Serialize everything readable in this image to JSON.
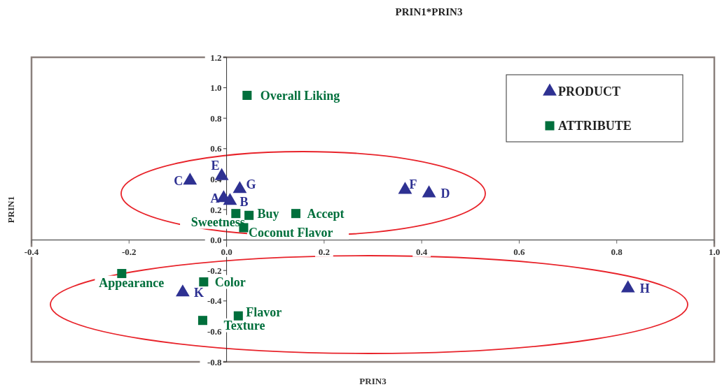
{
  "chart_data": {
    "type": "scatter",
    "title": "PRIN1*PRIN3",
    "xlabel": "PRIN3",
    "ylabel": "PRIN1",
    "xlim": [
      -0.4,
      1.0
    ],
    "xticks": [
      {
        "value": -0.4,
        "label": "-0.4"
      },
      {
        "value": -0.2,
        "label": "-0.2"
      },
      {
        "value": 0,
        "label": "0.0"
      },
      {
        "value": 0.2,
        "label": "0.2"
      },
      {
        "value": 0.4,
        "label": "0.4"
      },
      {
        "value": 0.6,
        "label": "0.6"
      },
      {
        "value": 0.8,
        "label": "0.8"
      },
      {
        "value": 1.0,
        "label": "1.0"
      }
    ],
    "ylim": [
      -0.8,
      1.2
    ],
    "yticks": [
      {
        "value": -0.8,
        "label": "-0.8"
      },
      {
        "value": -0.6,
        "label": "-0.6"
      },
      {
        "value": -0.4,
        "label": "-0.4"
      },
      {
        "value": -0.2,
        "label": "-0.2"
      },
      {
        "value": 0,
        "label": "0.0"
      },
      {
        "value": 0.2,
        "label": "0.2"
      },
      {
        "value": 0.4,
        "label": "0.4"
      },
      {
        "value": 0.6,
        "label": "0.6"
      },
      {
        "value": 0.8,
        "label": "0.8"
      },
      {
        "value": 1.0,
        "label": "1.0"
      },
      {
        "value": 1.2,
        "label": "1.2"
      }
    ],
    "grid": false,
    "legend": "top right",
    "series": [
      {
        "name": "PRODUCT",
        "color": "#2e3192",
        "marker": "triangle",
        "x": [
          -0.075,
          -0.01,
          0.027,
          -0.006,
          0.007,
          0.366,
          0.415,
          0.823,
          -0.09
        ],
        "values": [
          0.39,
          0.42,
          0.335,
          0.275,
          0.257,
          0.33,
          0.307,
          -0.317,
          -0.344
        ]
      },
      {
        "name": "ATTRIBUTE",
        "color": "#006f3c",
        "marker": "square",
        "x": [
          0.042,
          0.019,
          0.046,
          0.142,
          0.035,
          -0.215,
          -0.047,
          0.024,
          -0.049
        ],
        "values": [
          0.95,
          0.174,
          0.162,
          0.174,
          0.081,
          -0.22,
          -0.275,
          -0.498,
          -0.528
        ]
      }
    ],
    "annotations": [
      {
        "text": "C",
        "x": -0.075,
        "y": 0.39
      },
      {
        "text": "E",
        "x": -0.01,
        "y": 0.42
      },
      {
        "text": "G",
        "x": 0.027,
        "y": 0.335
      },
      {
        "text": "A",
        "x": -0.006,
        "y": 0.275
      },
      {
        "text": "B",
        "x": 0.007,
        "y": 0.257
      },
      {
        "text": "F",
        "x": 0.366,
        "y": 0.33
      },
      {
        "text": "D",
        "x": 0.415,
        "y": 0.307
      },
      {
        "text": "H",
        "x": 0.823,
        "y": -0.317
      },
      {
        "text": "K",
        "x": -0.09,
        "y": -0.344
      },
      {
        "text": "Overall Liking",
        "x": 0.042,
        "y": 0.95
      },
      {
        "text": "Sweetness",
        "x": 0.019,
        "y": 0.174
      },
      {
        "text": "Buy",
        "x": 0.046,
        "y": 0.162
      },
      {
        "text": "Accept",
        "x": 0.142,
        "y": 0.174
      },
      {
        "text": "Coconut Flavor",
        "x": 0.035,
        "y": 0.081
      },
      {
        "text": "Appearance",
        "x": -0.215,
        "y": -0.22
      },
      {
        "text": "Color",
        "x": -0.047,
        "y": -0.275
      },
      {
        "text": "Flavor",
        "x": 0.024,
        "y": -0.498
      },
      {
        "text": "Texture",
        "x": -0.049,
        "y": -0.528
      }
    ]
  }
}
